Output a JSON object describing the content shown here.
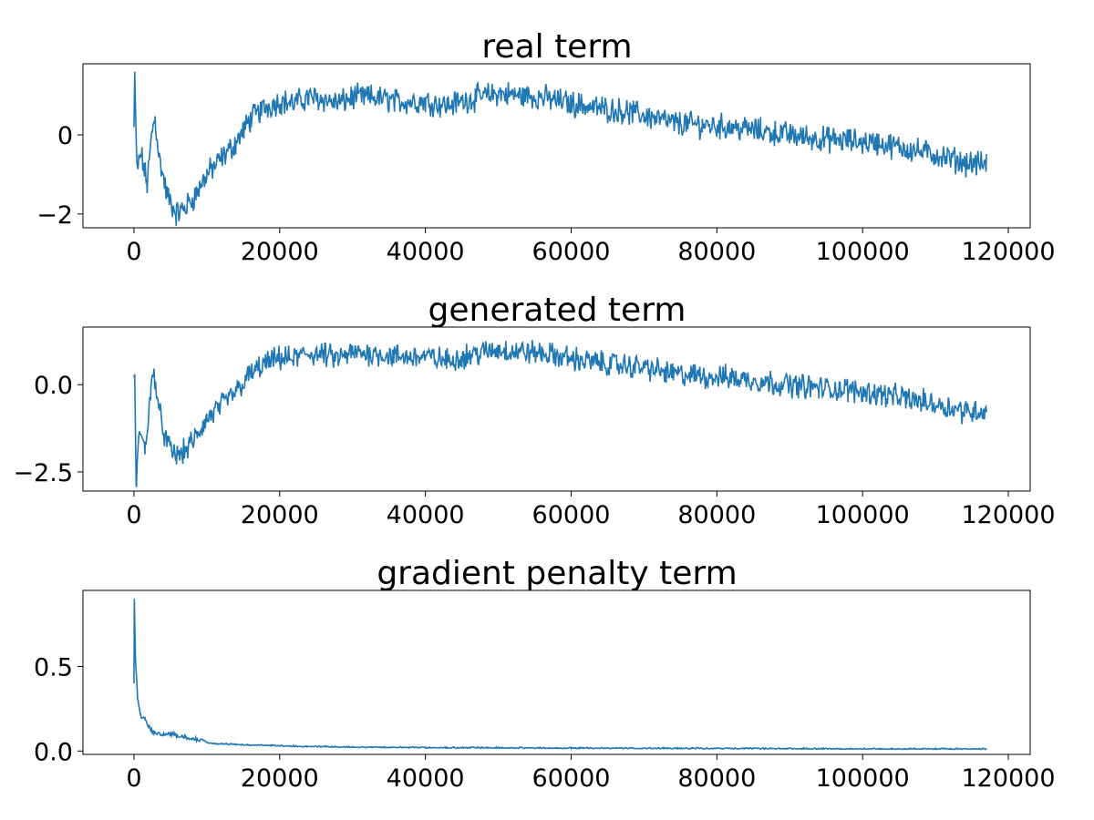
{
  "chart_data": [
    {
      "type": "line",
      "title": "real term",
      "xlabel": "",
      "ylabel": "",
      "xlim": [
        -7000,
        123000
      ],
      "ylim": [
        -2.35,
        1.8
      ],
      "xticks": [
        0,
        20000,
        40000,
        60000,
        80000,
        100000,
        120000
      ],
      "xtick_labels": [
        "0",
        "20000",
        "40000",
        "60000",
        "80000",
        "100000",
        "120000"
      ],
      "yticks": [
        0,
        -2
      ],
      "ytick_labels": [
        "0",
        "−2"
      ],
      "grid": false,
      "color": "#1f77b4",
      "x_max_data": 117000,
      "series": [
        {
          "points": [
            [
              0,
              0.2
            ],
            [
              100,
              1.6
            ],
            [
              400,
              -0.9
            ],
            [
              1000,
              -0.5
            ],
            [
              1800,
              -1.25
            ],
            [
              2500,
              0.1
            ],
            [
              2900,
              0.4
            ],
            [
              3500,
              -0.6
            ],
            [
              4500,
              -1.5
            ],
            [
              5800,
              -2.0
            ],
            [
              7000,
              -1.85
            ],
            [
              8500,
              -1.5
            ],
            [
              10000,
              -1.0
            ],
            [
              12000,
              -0.6
            ],
            [
              14000,
              -0.2
            ],
            [
              16000,
              0.4
            ],
            [
              18000,
              0.7
            ],
            [
              20000,
              0.85
            ],
            [
              22000,
              0.8
            ],
            [
              24000,
              0.95
            ],
            [
              26000,
              0.9
            ],
            [
              28000,
              0.8
            ],
            [
              30000,
              0.95
            ],
            [
              33000,
              0.95
            ],
            [
              36000,
              0.85
            ],
            [
              40000,
              0.85
            ],
            [
              43000,
              0.75
            ],
            [
              46000,
              0.9
            ],
            [
              50000,
              1.05
            ],
            [
              53000,
              1.0
            ],
            [
              56000,
              0.95
            ],
            [
              60000,
              0.8
            ],
            [
              63000,
              0.7
            ],
            [
              67000,
              0.6
            ],
            [
              70000,
              0.5
            ],
            [
              74000,
              0.3
            ],
            [
              78000,
              0.25
            ],
            [
              82000,
              0.2
            ],
            [
              86000,
              0.1
            ],
            [
              90000,
              0.0
            ],
            [
              94000,
              -0.1
            ],
            [
              98000,
              -0.15
            ],
            [
              102000,
              -0.2
            ],
            [
              106000,
              -0.35
            ],
            [
              110000,
              -0.5
            ],
            [
              114000,
              -0.7
            ],
            [
              117000,
              -0.75
            ]
          ],
          "noise": 0.26
        }
      ]
    },
    {
      "type": "line",
      "title": "generated term",
      "xlabel": "",
      "ylabel": "",
      "xlim": [
        -7000,
        123000
      ],
      "ylim": [
        -3.05,
        1.65
      ],
      "xticks": [
        0,
        20000,
        40000,
        60000,
        80000,
        100000,
        120000
      ],
      "xtick_labels": [
        "0",
        "20000",
        "40000",
        "60000",
        "80000",
        "100000",
        "120000"
      ],
      "yticks": [
        0,
        -2.5
      ],
      "ytick_labels": [
        "0.0",
        "−2.5"
      ],
      "grid": false,
      "color": "#1f77b4",
      "x_max_data": 117000,
      "series": [
        {
          "points": [
            [
              0,
              0.2
            ],
            [
              100,
              0.3
            ],
            [
              300,
              -2.85
            ],
            [
              800,
              -1.2
            ],
            [
              1500,
              -1.9
            ],
            [
              2300,
              -0.2
            ],
            [
              2800,
              0.35
            ],
            [
              3500,
              -0.8
            ],
            [
              4500,
              -1.7
            ],
            [
              5800,
              -2.05
            ],
            [
              7000,
              -1.9
            ],
            [
              8500,
              -1.5
            ],
            [
              10000,
              -1.0
            ],
            [
              12000,
              -0.6
            ],
            [
              14000,
              -0.2
            ],
            [
              16000,
              0.3
            ],
            [
              18000,
              0.6
            ],
            [
              20000,
              0.75
            ],
            [
              22000,
              0.75
            ],
            [
              24000,
              0.9
            ],
            [
              26000,
              0.85
            ],
            [
              28000,
              0.75
            ],
            [
              30000,
              0.9
            ],
            [
              33000,
              0.9
            ],
            [
              36000,
              0.8
            ],
            [
              40000,
              0.8
            ],
            [
              43000,
              0.7
            ],
            [
              46000,
              0.85
            ],
            [
              50000,
              1.0
            ],
            [
              53000,
              0.95
            ],
            [
              56000,
              0.9
            ],
            [
              60000,
              0.75
            ],
            [
              63000,
              0.65
            ],
            [
              67000,
              0.55
            ],
            [
              70000,
              0.5
            ],
            [
              74000,
              0.3
            ],
            [
              78000,
              0.25
            ],
            [
              82000,
              0.2
            ],
            [
              86000,
              0.1
            ],
            [
              90000,
              0.0
            ],
            [
              94000,
              -0.1
            ],
            [
              98000,
              -0.15
            ],
            [
              102000,
              -0.25
            ],
            [
              106000,
              -0.4
            ],
            [
              110000,
              -0.55
            ],
            [
              114000,
              -0.75
            ],
            [
              117000,
              -0.75
            ]
          ],
          "noise": 0.28
        }
      ]
    },
    {
      "type": "line",
      "title": "gradient penalty term",
      "xlabel": "",
      "ylabel": "",
      "xlim": [
        -7000,
        123000
      ],
      "ylim": [
        -0.02,
        0.95
      ],
      "xticks": [
        0,
        20000,
        40000,
        60000,
        80000,
        100000,
        120000
      ],
      "xtick_labels": [
        "0",
        "20000",
        "40000",
        "60000",
        "80000",
        "100000",
        "120000"
      ],
      "yticks": [
        0.0,
        0.5
      ],
      "ytick_labels": [
        "0.0",
        "0.5"
      ],
      "grid": false,
      "color": "#1f77b4",
      "x_max_data": 117000,
      "series": [
        {
          "points": [
            [
              0,
              0.4
            ],
            [
              50,
              0.9
            ],
            [
              200,
              0.55
            ],
            [
              500,
              0.3
            ],
            [
              900,
              0.2
            ],
            [
              1500,
              0.18
            ],
            [
              2000,
              0.14
            ],
            [
              2600,
              0.1
            ],
            [
              3500,
              0.09
            ],
            [
              5000,
              0.09
            ],
            [
              7000,
              0.07
            ],
            [
              9000,
              0.055
            ],
            [
              11000,
              0.04
            ],
            [
              14000,
              0.035
            ],
            [
              18000,
              0.03
            ],
            [
              22000,
              0.025
            ],
            [
              30000,
              0.02
            ],
            [
              40000,
              0.017
            ],
            [
              60000,
              0.014
            ],
            [
              80000,
              0.012
            ],
            [
              100000,
              0.01
            ],
            [
              117000,
              0.009
            ]
          ],
          "noise": 0.006
        }
      ]
    }
  ]
}
